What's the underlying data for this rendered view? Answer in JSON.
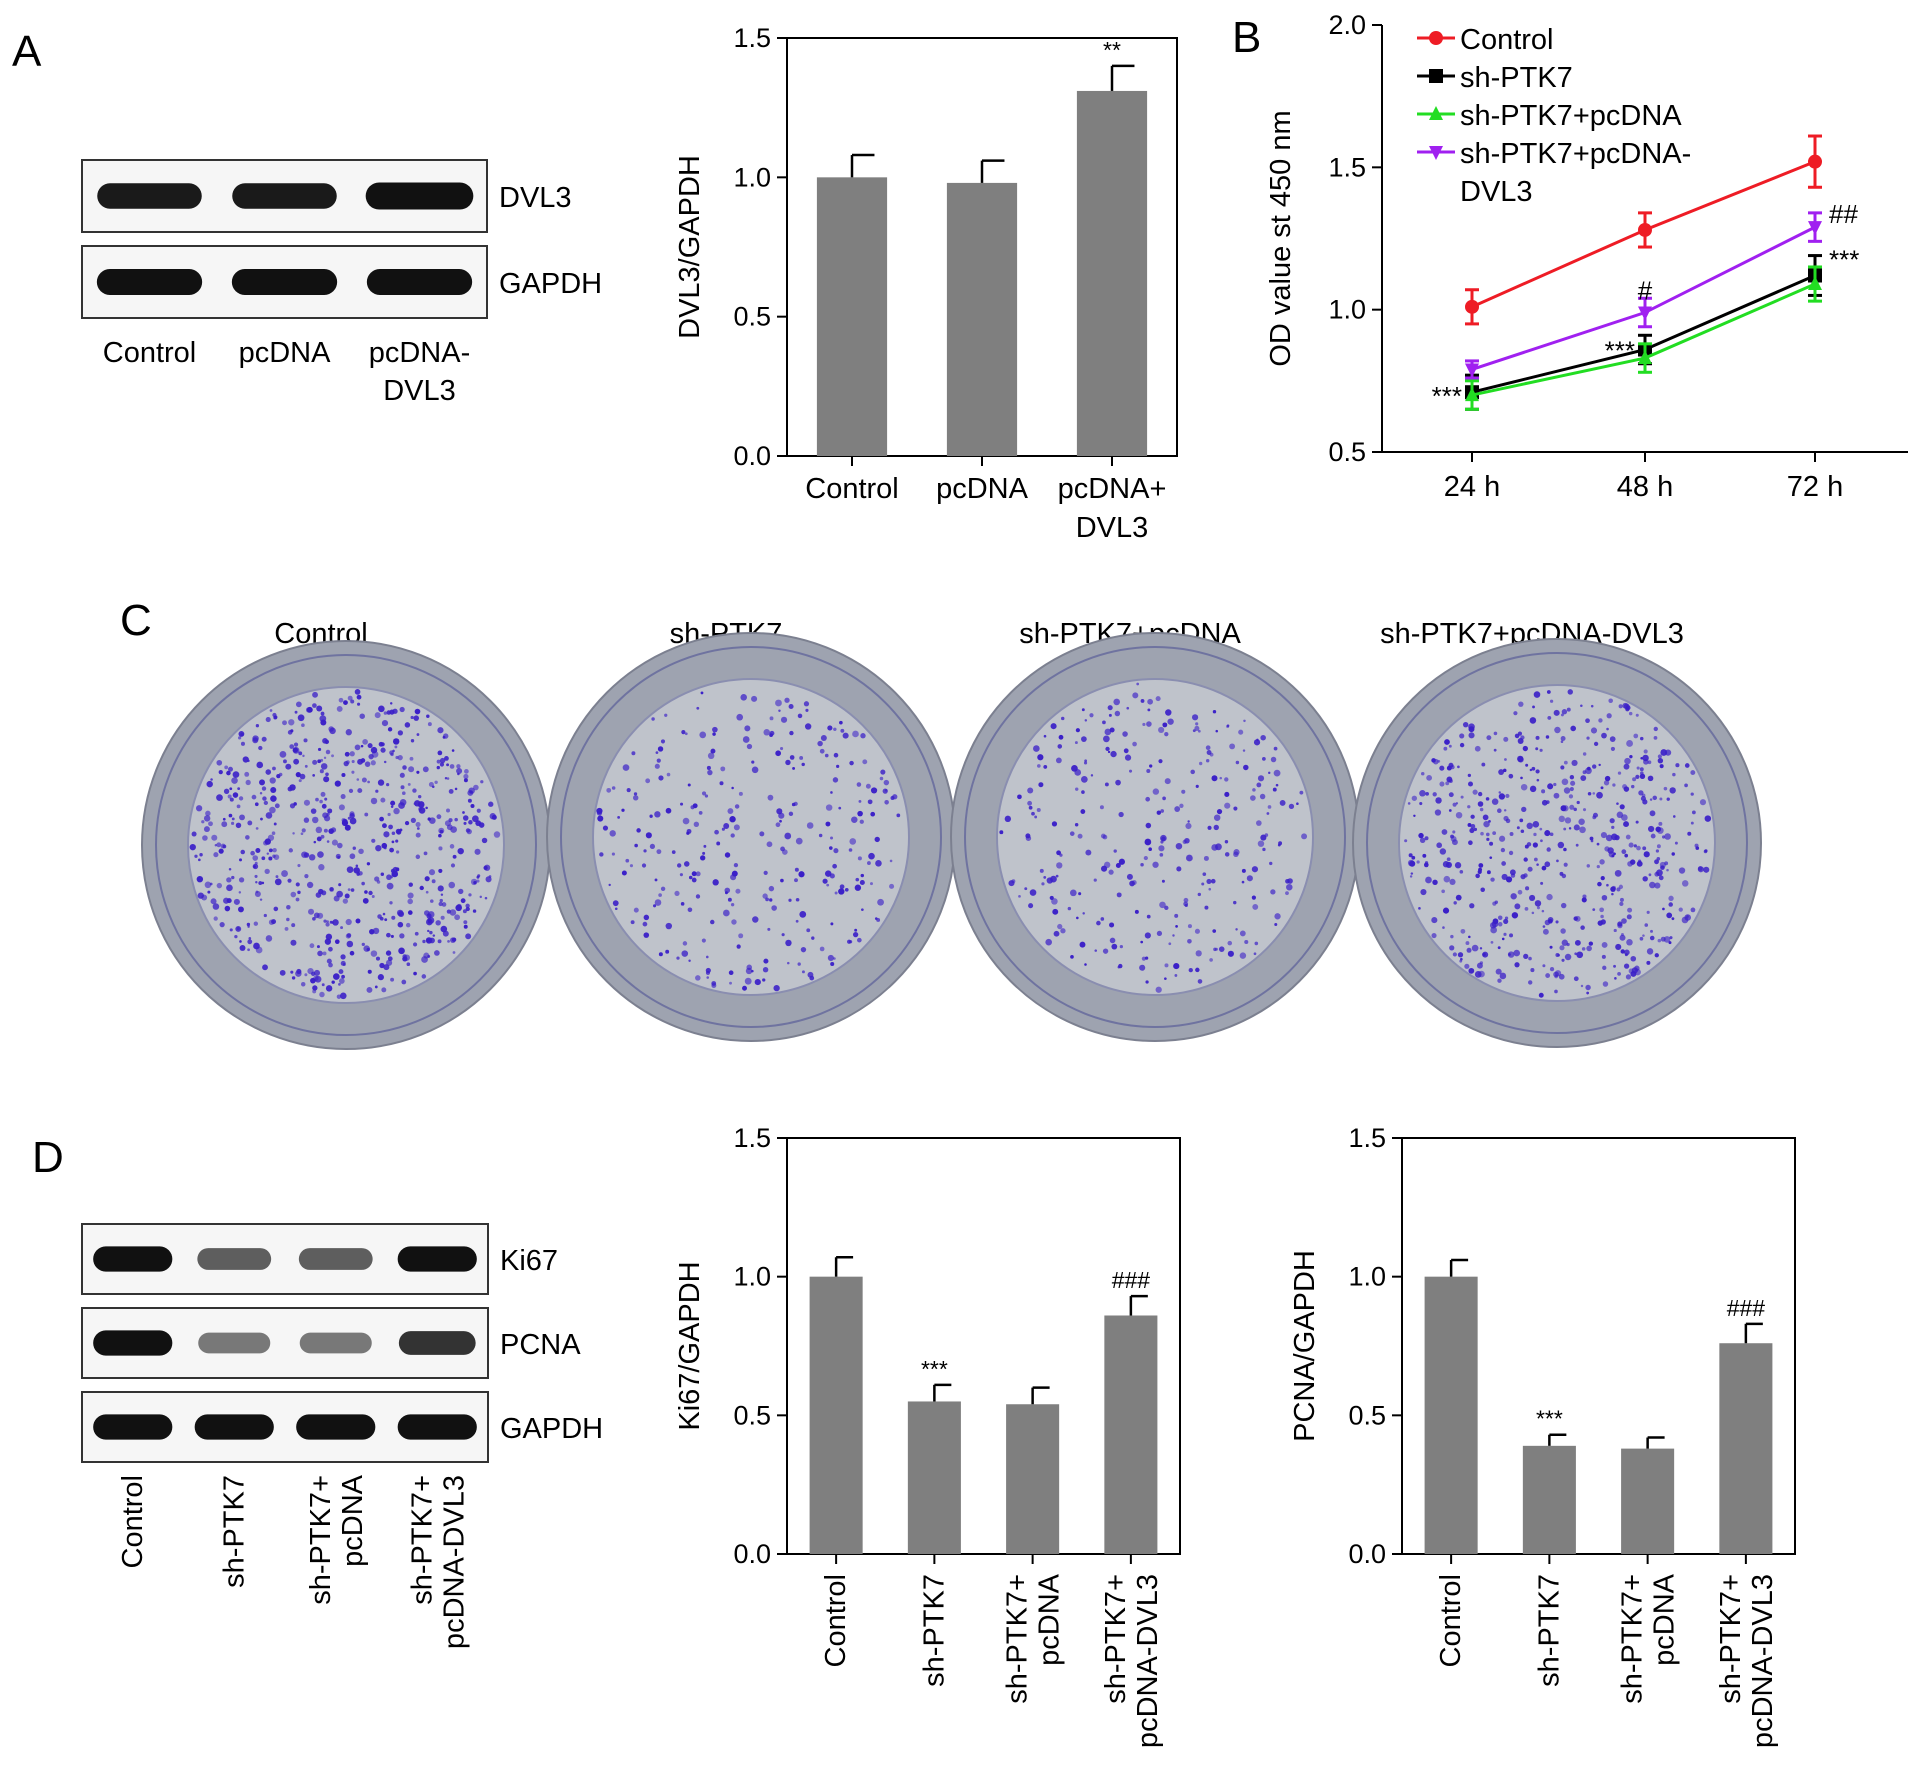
{
  "panels": {
    "A": {
      "letter": "A",
      "blot": {
        "rows": [
          {
            "label": "DVL3",
            "intensities": [
              0.95,
              0.95,
              1.15
            ]
          },
          {
            "label": "GAPDH",
            "intensities": [
              1.0,
              1.0,
              1.0
            ]
          }
        ],
        "lanes": [
          [
            "Control"
          ],
          [
            "pcDNA"
          ],
          [
            "pcDNA-",
            "DVL3"
          ]
        ]
      },
      "chart_data": {
        "type": "bar",
        "categories": [
          [
            "Control"
          ],
          [
            "pcDNA"
          ],
          [
            "pcDNA+",
            "DVL3"
          ]
        ],
        "values": [
          1.0,
          0.98,
          1.31
        ],
        "errors": [
          0.08,
          0.08,
          0.09
        ],
        "annotations": [
          "",
          "",
          "**"
        ],
        "ylabel": "DVL3/GAPDH",
        "ylim": [
          0,
          1.5
        ],
        "yticks": [
          "0.0",
          "0.5",
          "1.0",
          "1.5"
        ],
        "bar_color": "#7f7f7f"
      }
    },
    "B": {
      "letter": "B",
      "chart_data": {
        "type": "line",
        "x": [
          "24 h",
          "48 h",
          "72 h"
        ],
        "series": [
          {
            "name": "Control",
            "values": [
              1.01,
              1.28,
              1.52
            ],
            "errors": [
              0.06,
              0.06,
              0.09
            ],
            "color": "#ee1c25",
            "marker": "circle"
          },
          {
            "name": "sh-PTK7",
            "values": [
              0.71,
              0.86,
              1.12
            ],
            "errors": [
              0.06,
              0.05,
              0.07
            ],
            "color": "#000000",
            "marker": "square"
          },
          {
            "name": "sh-PTK7+pcDNA",
            "values": [
              0.7,
              0.83,
              1.09
            ],
            "errors": [
              0.05,
              0.05,
              0.06
            ],
            "color": "#22dd22",
            "marker": "triangle-up"
          },
          {
            "name": "sh-PTK7+pcDNA-DVL3",
            "legend_lines": [
              "sh-PTK7+pcDNA-",
              "DVL3"
            ],
            "values": [
              0.79,
              0.99,
              1.29
            ],
            "errors": [
              0.03,
              0.05,
              0.05
            ],
            "color": "#a020f0",
            "marker": "triangle-down"
          }
        ],
        "annotations": [
          {
            "text": "***",
            "x": "24 h",
            "y": 0.7,
            "side": "left"
          },
          {
            "text": "***",
            "x": "48 h",
            "y": 0.86,
            "side": "left"
          },
          {
            "text": "#",
            "x": "48 h",
            "y": 1.07,
            "side": "center"
          },
          {
            "text": "##",
            "x": "72 h",
            "y": 1.34,
            "side": "right"
          },
          {
            "text": "***",
            "x": "72 h",
            "y": 1.18,
            "side": "right"
          }
        ],
        "ylabel": "OD value st 450 nm",
        "ylim": [
          0.5,
          2.0
        ],
        "yticks": [
          "0.5",
          "1.0",
          "1.5",
          "2.0"
        ],
        "legend_position": "top-left"
      }
    },
    "C": {
      "letter": "C",
      "plates": [
        {
          "label": "Control",
          "density": 1.0
        },
        {
          "label": "sh-PTK7",
          "density": 0.45
        },
        {
          "label": "sh-PTK7+pcDNA",
          "density": 0.45
        },
        {
          "label": "sh-PTK7+pcDNA-DVL3",
          "density": 0.85
        }
      ],
      "colors": {
        "plate": "#9ea3b0",
        "plate_inner": "#bfc3cb",
        "colony": "#3a1fc8"
      }
    },
    "D": {
      "letter": "D",
      "blot": {
        "rows": [
          {
            "label": "Ki67",
            "intensities": [
              1.0,
              0.55,
              0.55,
              1.0
            ]
          },
          {
            "label": "PCNA",
            "intensities": [
              1.0,
              0.4,
              0.4,
              0.8
            ]
          },
          {
            "label": "GAPDH",
            "intensities": [
              1.0,
              1.0,
              1.0,
              1.0
            ]
          }
        ],
        "lanes": [
          [
            "Control"
          ],
          [
            "sh-PTK7"
          ],
          [
            "sh-PTK7+",
            "pcDNA"
          ],
          [
            "sh-PTK7+",
            "pcDNA-DVL3"
          ]
        ]
      },
      "chart_data": [
        {
          "type": "bar",
          "categories": [
            [
              "Control"
            ],
            [
              "sh-PTK7"
            ],
            [
              "sh-PTK7+",
              "pcDNA"
            ],
            [
              "sh-PTK7+",
              "pcDNA-DVL3"
            ]
          ],
          "values": [
            1.0,
            0.55,
            0.54,
            0.86
          ],
          "errors": [
            0.07,
            0.06,
            0.06,
            0.07
          ],
          "annotations": [
            "",
            "***",
            "",
            "###"
          ],
          "ylabel": "Ki67/GAPDH",
          "ylim": [
            0,
            1.5
          ],
          "yticks": [
            "0.0",
            "0.5",
            "1.0",
            "1.5"
          ],
          "bar_color": "#7f7f7f"
        },
        {
          "type": "bar",
          "categories": [
            [
              "Control"
            ],
            [
              "sh-PTK7"
            ],
            [
              "sh-PTK7+",
              "pcDNA"
            ],
            [
              "sh-PTK7+",
              "pcDNA-DVL3"
            ]
          ],
          "values": [
            1.0,
            0.39,
            0.38,
            0.76
          ],
          "errors": [
            0.06,
            0.04,
            0.04,
            0.07
          ],
          "annotations": [
            "",
            "***",
            "",
            "###"
          ],
          "ylabel": "PCNA/GAPDH",
          "ylim": [
            0,
            1.5
          ],
          "yticks": [
            "0.0",
            "0.5",
            "1.0",
            "1.5"
          ],
          "bar_color": "#7f7f7f"
        }
      ]
    }
  }
}
